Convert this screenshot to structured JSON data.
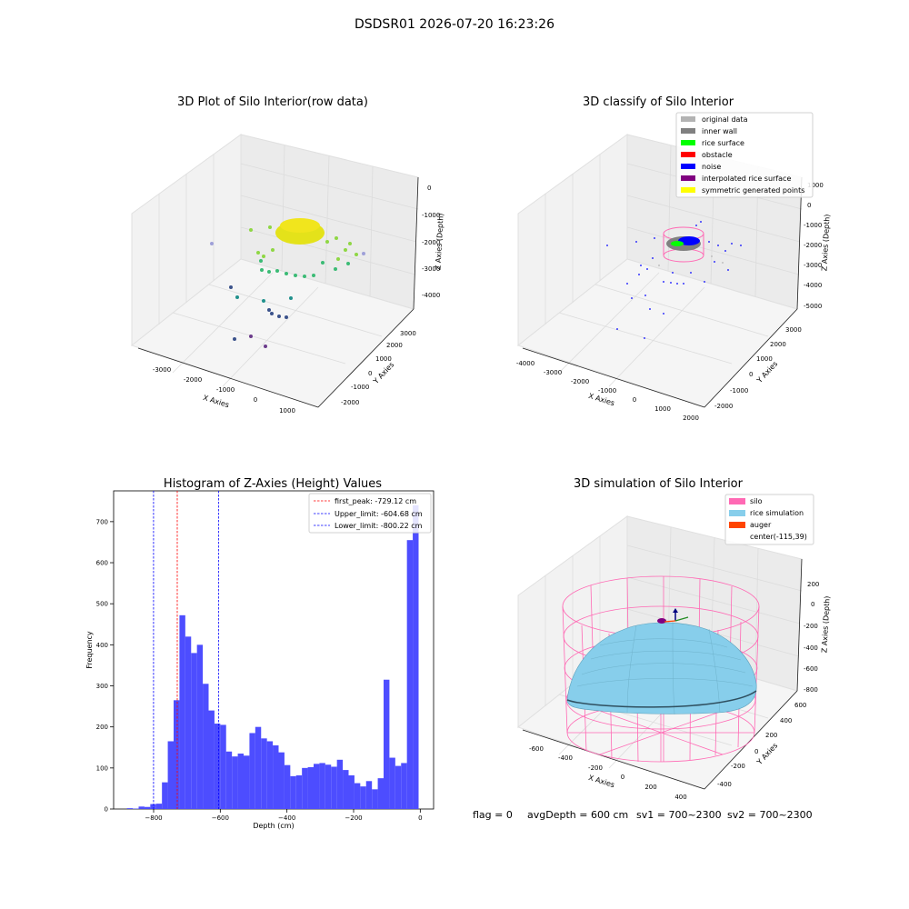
{
  "suptitle": "DSDSR01 2026-07-20 16:23:26",
  "footer": {
    "flag": "flag = 0",
    "avg_depth": "avgDepth = 600 cm",
    "sv1": "sv1 = 700~2300",
    "sv2": "sv2 = 700~2300"
  },
  "panels": {
    "raw3d": {
      "title": "3D Plot of Silo Interior(row data)",
      "xlabel": "X Axies",
      "ylabel": "Y Axies",
      "zlabel": "Z Axies (Depth)",
      "xticks": [
        "-3000",
        "-2000",
        "-1000",
        "0",
        "1000"
      ],
      "yticks": [
        "-2000",
        "-1000",
        "0",
        "1000",
        "2000",
        "3000"
      ],
      "zticks": [
        "0",
        "-1000",
        "-2000",
        "-3000",
        "-4000"
      ]
    },
    "classify3d": {
      "title": "3D classify of Silo Interior",
      "xlabel": "X Axies",
      "ylabel": "Y Axies",
      "zlabel": "Z Axies (Depth)",
      "xticks": [
        "-4000",
        "-3000",
        "-2000",
        "-1000",
        "0",
        "1000",
        "2000"
      ],
      "yticks": [
        "-2000",
        "-1000",
        "0",
        "1000",
        "2000",
        "3000"
      ],
      "zticks": [
        "1000",
        "0",
        "-1000",
        "-2000",
        "-3000",
        "-4000",
        "-5000"
      ],
      "legend": [
        {
          "label": "original data",
          "color": "#b3b3b3"
        },
        {
          "label": "inner wall",
          "color": "#808080"
        },
        {
          "label": "rice surface",
          "color": "#00ff00"
        },
        {
          "label": "obstacle",
          "color": "#ff0000"
        },
        {
          "label": "noise",
          "color": "#0000ff"
        },
        {
          "label": "interpolated rice surface",
          "color": "#800080"
        },
        {
          "label": "symmetric generated points",
          "color": "#ffff00"
        }
      ]
    },
    "sim3d": {
      "title": "3D simulation of Silo Interior",
      "xlabel": "X Axies",
      "ylabel": "Y Axies",
      "zlabel": "Z Axies (Depth)",
      "xticks": [
        "-600",
        "-400",
        "-200",
        "0",
        "200",
        "400"
      ],
      "yticks": [
        "-400",
        "-200",
        "0",
        "200",
        "400",
        "600"
      ],
      "zticks": [
        "200",
        "0",
        "-200",
        "-400",
        "-600",
        "-800"
      ],
      "legend": [
        {
          "label": "silo",
          "color": "#ff69b4"
        },
        {
          "label": "rice simulation",
          "color": "#87ceeb"
        },
        {
          "label": "auger",
          "color": "#ff4500"
        },
        {
          "label": "center(-115,39)",
          "color": ""
        }
      ]
    }
  },
  "chart_data": {
    "type": "bar",
    "title": "Histogram of Z-Axies (Height) Values",
    "xlabel": "Depth (cm)",
    "ylabel": "Frequency",
    "xlim": [
      -920,
      40
    ],
    "ylim": [
      0,
      775
    ],
    "xticks": [
      -800,
      -600,
      -400,
      -200,
      0
    ],
    "yticks": [
      0,
      100,
      200,
      300,
      400,
      500,
      600,
      700
    ],
    "bin_width": 17.5,
    "bar_color": "#4d4dff",
    "bins": [
      {
        "x": -880,
        "count": 2
      },
      {
        "x": -862.5,
        "count": 1
      },
      {
        "x": -845,
        "count": 6
      },
      {
        "x": -827.5,
        "count": 5
      },
      {
        "x": -810,
        "count": 12
      },
      {
        "x": -792.5,
        "count": 13
      },
      {
        "x": -775,
        "count": 65
      },
      {
        "x": -757.5,
        "count": 165
      },
      {
        "x": -740,
        "count": 265
      },
      {
        "x": -722.5,
        "count": 472
      },
      {
        "x": -705,
        "count": 420
      },
      {
        "x": -687.5,
        "count": 380
      },
      {
        "x": -670,
        "count": 400
      },
      {
        "x": -652.5,
        "count": 305
      },
      {
        "x": -635,
        "count": 240
      },
      {
        "x": -617.5,
        "count": 208
      },
      {
        "x": -600,
        "count": 205
      },
      {
        "x": -582.5,
        "count": 140
      },
      {
        "x": -565,
        "count": 128
      },
      {
        "x": -547.5,
        "count": 135
      },
      {
        "x": -530,
        "count": 130
      },
      {
        "x": -512.5,
        "count": 185
      },
      {
        "x": -495,
        "count": 200
      },
      {
        "x": -477.5,
        "count": 172
      },
      {
        "x": -460,
        "count": 165
      },
      {
        "x": -442.5,
        "count": 155
      },
      {
        "x": -425,
        "count": 138
      },
      {
        "x": -407.5,
        "count": 107
      },
      {
        "x": -390,
        "count": 80
      },
      {
        "x": -372.5,
        "count": 82
      },
      {
        "x": -355,
        "count": 100
      },
      {
        "x": -337.5,
        "count": 102
      },
      {
        "x": -320,
        "count": 110
      },
      {
        "x": -302.5,
        "count": 112
      },
      {
        "x": -285,
        "count": 108
      },
      {
        "x": -267.5,
        "count": 103
      },
      {
        "x": -250,
        "count": 120
      },
      {
        "x": -232.5,
        "count": 95
      },
      {
        "x": -215,
        "count": 82
      },
      {
        "x": -197.5,
        "count": 63
      },
      {
        "x": -180,
        "count": 55
      },
      {
        "x": -162.5,
        "count": 68
      },
      {
        "x": -145,
        "count": 48
      },
      {
        "x": -127.5,
        "count": 75
      },
      {
        "x": -110,
        "count": 315
      },
      {
        "x": -92.5,
        "count": 125
      },
      {
        "x": -75,
        "count": 105
      },
      {
        "x": -57.5,
        "count": 112
      },
      {
        "x": -40,
        "count": 655
      },
      {
        "x": -22.5,
        "count": 740
      }
    ],
    "vlines": [
      {
        "label": "first_peak: -729.12 cm",
        "x": -729.12,
        "color": "#ff0000"
      },
      {
        "label": "Upper_limit: -604.68 cm",
        "x": -604.68,
        "color": "#0000ff"
      },
      {
        "label": "Lower_limit: -800.22 cm",
        "x": -800.22,
        "color": "#0000ff"
      }
    ],
    "legend_position": "top-right"
  }
}
